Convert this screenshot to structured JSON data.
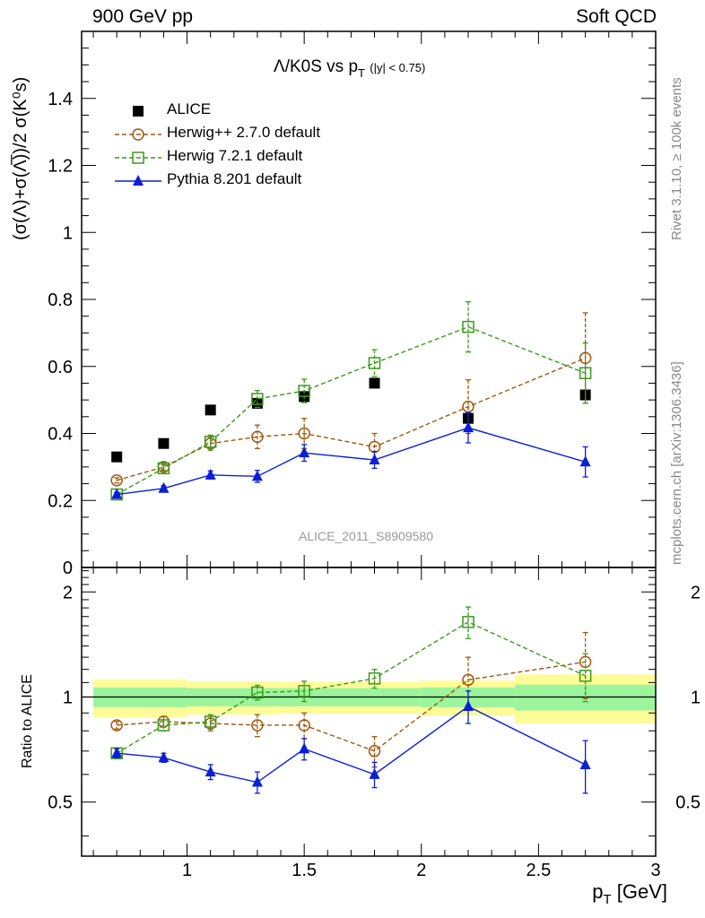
{
  "header": {
    "left": "900 GeV pp",
    "right": "Soft QCD"
  },
  "side_text": {
    "rivet": "Rivet 3.1.10, ≥ 100k events",
    "mcplots": "mcplots.cern.ch [arXiv:1306.3436]"
  },
  "title": {
    "main": "Λ/K0S vs p",
    "main_sub": "T",
    "cut": "(|y| < 0.75)"
  },
  "watermark": "ALICE_2011_S8909580",
  "axes": {
    "ylabel_main": "(σ(Λ)+σ(Λ̅))/2 σ(K⁰s)",
    "ylabel_ratio": "Ratio to ALICE",
    "xlabel": "p",
    "xlabel_sub": "T",
    "xlabel_unit": "[GeV]"
  },
  "chart_data": [
    {
      "type": "scatter",
      "panel": "main",
      "xlim": [
        0.55,
        3.0
      ],
      "ylim": [
        0,
        1.6
      ],
      "x_ticks": [
        1,
        1.5,
        2,
        2.5,
        3
      ],
      "y_ticks": [
        0,
        0.2,
        0.4,
        0.6,
        0.8,
        1,
        1.2,
        1.4
      ],
      "y_tick_labels": [
        "0",
        "0.2",
        "0.4",
        "0.6",
        "0.8",
        "1",
        "1.2",
        "1.4"
      ],
      "legend_position": "top-left",
      "series": [
        {
          "name": "ALICE",
          "style": "data",
          "color": "#000000",
          "marker": "square-filled",
          "x": [
            0.7,
            0.9,
            1.1,
            1.3,
            1.5,
            1.8,
            2.2,
            2.7
          ],
          "y": [
            0.33,
            0.37,
            0.47,
            0.49,
            0.51,
            0.55,
            0.445,
            0.515
          ]
        },
        {
          "name": "Herwig++ 2.7.0 default",
          "style": "dashed",
          "color": "#a0570f",
          "marker": "circle-open",
          "x": [
            0.7,
            0.9,
            1.1,
            1.3,
            1.5,
            1.8,
            2.2,
            2.7
          ],
          "y": [
            0.26,
            0.3,
            0.37,
            0.39,
            0.4,
            0.36,
            0.48,
            0.625
          ],
          "err": [
            0.008,
            0.01,
            0.02,
            0.035,
            0.045,
            0.04,
            0.08,
            0.135
          ]
        },
        {
          "name": "Herwig 7.2.1 default",
          "style": "dashed",
          "color": "#3a9a1c",
          "marker": "square-open",
          "x": [
            0.7,
            0.9,
            1.1,
            1.3,
            1.5,
            1.8,
            2.2,
            2.7
          ],
          "y": [
            0.218,
            0.296,
            0.375,
            0.503,
            0.527,
            0.61,
            0.718,
            0.58
          ],
          "err": [
            0.006,
            0.01,
            0.02,
            0.025,
            0.035,
            0.04,
            0.075,
            0.09
          ]
        },
        {
          "name": "Pythia 8.201 default",
          "style": "solid",
          "color": "#0a1fd8",
          "marker": "triangle-filled",
          "x": [
            0.7,
            0.9,
            1.1,
            1.3,
            1.5,
            1.8,
            2.2,
            2.7
          ],
          "y": [
            0.218,
            0.236,
            0.276,
            0.272,
            0.342,
            0.321,
            0.417,
            0.315
          ],
          "err": [
            0.006,
            0.008,
            0.012,
            0.018,
            0.025,
            0.025,
            0.045,
            0.045
          ]
        }
      ]
    },
    {
      "type": "scatter",
      "panel": "ratio",
      "xlim": [
        0.55,
        3.0
      ],
      "ylim": [
        0.35,
        2.35
      ],
      "x_ticks": [
        1,
        1.5,
        2,
        2.5,
        3
      ],
      "x_tick_labels": [
        "1",
        "1.5",
        "2",
        "2.5",
        "3"
      ],
      "y_ticks": [
        0.5,
        1,
        2
      ],
      "y_tick_labels": [
        "0.5",
        "1",
        "2"
      ],
      "bands": {
        "edges": [
          0.6,
          1.0,
          1.4,
          2.0,
          2.4,
          3.0
        ],
        "stat_half": [
          0.065,
          0.06,
          0.06,
          0.065,
          0.085
        ],
        "total_half": [
          0.125,
          0.11,
          0.105,
          0.115,
          0.16
        ],
        "total_color": "#fdfc99",
        "stat_color": "#9cf59c"
      },
      "reference": 1,
      "series": [
        {
          "name": "Herwig++ 2.7.0 default",
          "color": "#a0570f",
          "marker": "circle-open",
          "style": "dashed",
          "x": [
            0.7,
            0.9,
            1.1,
            1.3,
            1.5,
            1.8,
            2.2,
            2.7
          ],
          "y": [
            0.83,
            0.85,
            0.84,
            0.83,
            0.83,
            0.7,
            1.12,
            1.26
          ],
          "err": [
            0.02,
            0.03,
            0.04,
            0.06,
            0.07,
            0.07,
            0.18,
            0.27
          ]
        },
        {
          "name": "Herwig 7.2.1 default",
          "color": "#3a9a1c",
          "marker": "square-open",
          "style": "dashed",
          "x": [
            0.7,
            0.9,
            1.1,
            1.3,
            1.5,
            1.8,
            2.2,
            2.7
          ],
          "y": [
            0.69,
            0.83,
            0.85,
            1.03,
            1.04,
            1.13,
            1.64,
            1.15
          ],
          "err": [
            0.02,
            0.03,
            0.04,
            0.05,
            0.07,
            0.07,
            0.17,
            0.18
          ]
        },
        {
          "name": "Pythia 8.201 default",
          "color": "#0a1fd8",
          "marker": "triangle-filled",
          "style": "solid",
          "x": [
            0.7,
            0.9,
            1.1,
            1.3,
            1.5,
            1.8,
            2.2,
            2.7
          ],
          "y": [
            0.69,
            0.67,
            0.61,
            0.57,
            0.71,
            0.6,
            0.94,
            0.64
          ],
          "err": [
            0.02,
            0.02,
            0.03,
            0.04,
            0.05,
            0.05,
            0.1,
            0.11
          ]
        }
      ]
    }
  ]
}
